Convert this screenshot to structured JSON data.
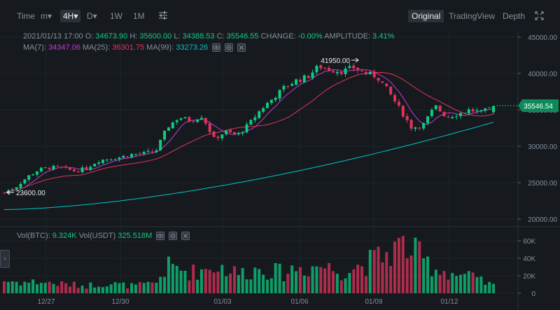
{
  "toolbar": {
    "time": "Time",
    "minute": "m▾",
    "h4": "4H▾",
    "day": "D▾",
    "week": "1W",
    "month": "1M",
    "views": [
      "Original",
      "TradingView",
      "Depth"
    ]
  },
  "ohlc": {
    "date": "2021/01/13 17:00",
    "o_label": "O:",
    "o": "34673.90",
    "h_label": "H:",
    "h": "35600.00",
    "l_label": "L:",
    "l": "34388.53",
    "c_label": "C:",
    "c": "35546.55",
    "change_label": "CHANGE:",
    "change": "-0.00%",
    "amp_label": "AMPLITUDE:",
    "amp": "3.41%"
  },
  "ma": {
    "ma7_label": "MA(7):",
    "ma7": "34347.06",
    "ma25_label": "MA(25):",
    "ma25": "36301.75",
    "ma99_label": "MA(99):",
    "ma99": "33273.26"
  },
  "vol": {
    "btc_label": "Vol(BTC):",
    "btc": "9.324K",
    "usdt_label": "Vol(USDT)",
    "usdt": "325.518M"
  },
  "colors": {
    "up": "#0ecb81",
    "down": "#e0335c",
    "ma7": "#c637d6",
    "ma25": "#e0335c",
    "ma99": "#00c4c4"
  },
  "chart_data": {
    "type": "candlestick",
    "price_axis": {
      "ticks": [
        45000,
        40000,
        35000,
        30000,
        25000,
        20000
      ],
      "tick_labels": [
        "45000.00",
        "40000.00",
        "35000.00",
        "30000.00",
        "25000.00",
        "20000.00"
      ]
    },
    "volume_axis": {
      "ticks": [
        60000,
        40000,
        20000,
        0
      ],
      "tick_labels": [
        "60K",
        "40K",
        "20K",
        "0"
      ]
    },
    "x_labels": [
      "12/27",
      "12/30",
      "01/03",
      "01/06",
      "01/09",
      "01/12"
    ],
    "last_price": "35546.54",
    "annotations": {
      "high": "41950.00",
      "low": "23600.00"
    },
    "price_path": [
      23600,
      24400,
      25800,
      26800,
      27100,
      27000,
      26600,
      26900,
      28000,
      28300,
      28500,
      28900,
      29000,
      29300,
      32600,
      34000,
      33500,
      34200,
      31000,
      32000,
      31500,
      33000,
      35000,
      36500,
      38000,
      39000,
      39500,
      41000,
      40500,
      40300,
      40800,
      40000,
      39600,
      37500,
      35000,
      32500,
      33000,
      35500,
      34000,
      34500,
      35000,
      34600,
      35546
    ],
    "volume_profile": [
      15000,
      14000,
      13000,
      14000,
      12000,
      11000,
      10000,
      9000,
      11000,
      12000,
      10000,
      9000,
      10000,
      12000,
      32000,
      30000,
      25000,
      28000,
      33000,
      30000,
      24000,
      26000,
      30000,
      27000,
      24000,
      31000,
      30000,
      34000,
      30000,
      26000,
      31000,
      35000,
      42000,
      48000,
      58000,
      52000,
      40000,
      30000,
      26000,
      22000,
      20000,
      14000,
      9000
    ]
  }
}
